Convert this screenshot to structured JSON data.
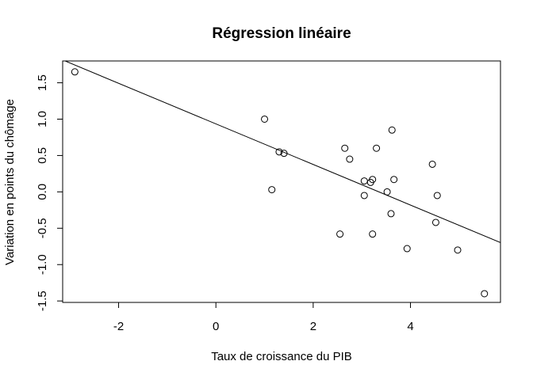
{
  "chart_data": {
    "type": "scatter",
    "title": "Régression linéaire",
    "xlabel": "Taux de croissance du PIB",
    "ylabel": "Variation en points du chômage",
    "xlim": [
      -3.15,
      5.85
    ],
    "ylim": [
      -1.52,
      1.8
    ],
    "x_ticks": [
      -2,
      0,
      2,
      4
    ],
    "x_tick_labels": [
      "-2",
      "0",
      "2",
      "4"
    ],
    "y_ticks": [
      -1.5,
      -1.0,
      -0.5,
      0.0,
      0.5,
      1.0,
      1.5
    ],
    "y_tick_labels": [
      "-1.5",
      "-1.0",
      "-0.5",
      "0.0",
      "0.5",
      "1.0",
      "1.5"
    ],
    "grid": false,
    "legend": "none",
    "points": [
      {
        "x": -2.9,
        "y": 1.65
      },
      {
        "x": 1.0,
        "y": 1.0
      },
      {
        "x": 1.15,
        "y": 0.03
      },
      {
        "x": 1.3,
        "y": 0.55
      },
      {
        "x": 1.4,
        "y": 0.53
      },
      {
        "x": 2.55,
        "y": -0.58
      },
      {
        "x": 2.65,
        "y": 0.6
      },
      {
        "x": 2.75,
        "y": 0.45
      },
      {
        "x": 3.05,
        "y": 0.15
      },
      {
        "x": 3.05,
        "y": -0.05
      },
      {
        "x": 3.18,
        "y": 0.13
      },
      {
        "x": 3.22,
        "y": 0.17
      },
      {
        "x": 3.22,
        "y": -0.58
      },
      {
        "x": 3.3,
        "y": 0.6
      },
      {
        "x": 3.52,
        "y": 0.0
      },
      {
        "x": 3.6,
        "y": -0.3
      },
      {
        "x": 3.62,
        "y": 0.85
      },
      {
        "x": 3.66,
        "y": 0.17
      },
      {
        "x": 3.93,
        "y": -0.78
      },
      {
        "x": 4.45,
        "y": 0.38
      },
      {
        "x": 4.52,
        "y": -0.42
      },
      {
        "x": 4.55,
        "y": -0.05
      },
      {
        "x": 4.97,
        "y": -0.8
      },
      {
        "x": 5.52,
        "y": -1.4
      }
    ],
    "regression_line": {
      "intercept": 0.9349,
      "slope": -0.2791
    },
    "colors": {
      "points": "#000000",
      "line": "#000000",
      "axes": "#000000",
      "background": "#ffffff"
    }
  }
}
